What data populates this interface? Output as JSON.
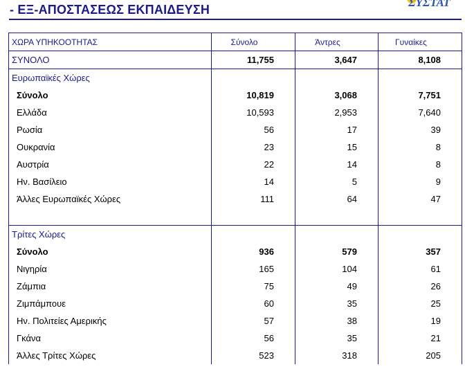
{
  "title": "- ΕΞ-ΑΠΟΣΤΑΣΕΩΣ ΕΚΠΑΙΔΕΥΣΗ",
  "logo_text": "ΣΥΣΤΑΤ",
  "colors": {
    "accent": "#1a1a8c",
    "logo": "#2a55b0",
    "sun": "#f3c21f"
  },
  "table": {
    "headers": [
      "ΧΩΡΑ ΥΠΗΚΟΟΤΗΤΑΣ",
      "Σύνολο",
      "Άντρες",
      "Γυναίκες"
    ],
    "total": [
      "ΣΥΝΟΛΟ",
      "11,755",
      "3,647",
      "8,108"
    ],
    "sections": [
      {
        "title": "Ευρωπαϊκές Χώρες",
        "rows": [
          [
            "Σύνολο",
            "10,819",
            "3,068",
            "7,751"
          ],
          [
            "Ελλάδα",
            "10,593",
            "2,953",
            "7,640"
          ],
          [
            "Ρωσία",
            "56",
            "17",
            "39"
          ],
          [
            "Ουκρανία",
            "23",
            "15",
            "8"
          ],
          [
            "Αυστρία",
            "22",
            "14",
            "8"
          ],
          [
            "Ην. Βασίλειο",
            "14",
            "5",
            "9"
          ],
          [
            "Άλλες Ευρωπαϊκές Χώρες",
            "111",
            "64",
            "47"
          ]
        ]
      },
      {
        "title": "Τρίτες Χώρες",
        "rows": [
          [
            "Σύνολο",
            "936",
            "579",
            "357"
          ],
          [
            "Νιγηρία",
            "165",
            "104",
            "61"
          ],
          [
            "Ζάμπια",
            "75",
            "49",
            "26"
          ],
          [
            "Ζιμπάμπουε",
            "60",
            "35",
            "25"
          ],
          [
            "Ην. Πολιτείες Αμερικής",
            "57",
            "38",
            "19"
          ],
          [
            "Γκάνα",
            "56",
            "35",
            "21"
          ],
          [
            "Άλλες Τρίτες Χώρες",
            "523",
            "318",
            "205"
          ]
        ]
      }
    ]
  }
}
